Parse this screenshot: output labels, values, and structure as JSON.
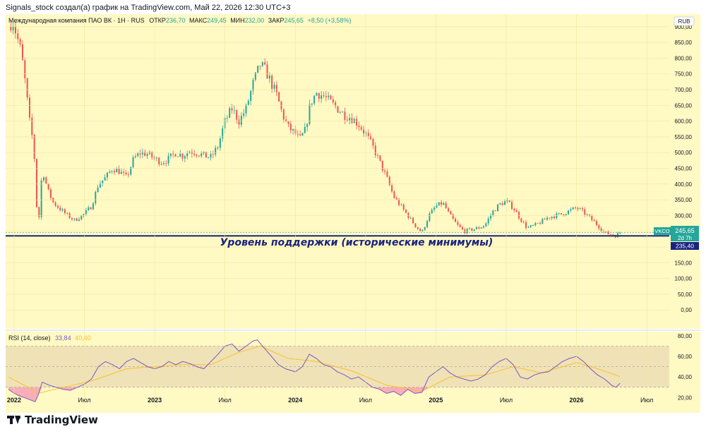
{
  "header": {
    "text": "Signals_stock создал(а) график на TradingView.com, Май 22, 2026 12:30 UTC+3"
  },
  "legend": {
    "symbol_line": "Международная компания ПАО ВК · 1Н · RUS",
    "open_label": "ОТКР",
    "open_value": "236,70",
    "high_label": "МАКС",
    "high_value": "249,45",
    "low_label": "МИН",
    "low_value": "232,00",
    "close_label": "ЗАКР",
    "close_value": "245,65",
    "change": "+8,50 (+3,58%)"
  },
  "currency": "RUB",
  "price_tag": {
    "ticker": "VKCO",
    "value": "245,65",
    "countdown": "2d 7h",
    "support_value": "235,40"
  },
  "annotation": "Уровень поддержки (исторические минимумы)",
  "rsi_legend": {
    "label": "RSI (14, close)",
    "value1": "33,84",
    "value2": "40,40"
  },
  "footer": {
    "brand": "TradingView"
  },
  "colors": {
    "background": "#fff9c4",
    "up": "#26a69a",
    "down": "#ef5350",
    "support": "#1a237e",
    "rsi_line": "#7e57c2",
    "rsi_ma": "#fbc02d"
  },
  "chart_data": [
    {
      "type": "candlestick",
      "ylim": [
        -60,
        940
      ],
      "y_ticks": [
        0,
        50,
        100,
        150,
        200,
        250,
        300,
        350,
        400,
        450,
        500,
        550,
        600,
        650,
        700,
        750,
        800,
        850,
        900
      ],
      "y_tick_labels": [
        "0,00",
        "50,00",
        "100,00",
        "150,00",
        "200,00",
        "250,00",
        "300,00",
        "350,00",
        "400,00",
        "450,00",
        "500,00",
        "550,00",
        "600,00",
        "650,00",
        "700,00",
        "750,00",
        "800,00",
        "850,00",
        "900,00"
      ],
      "x_ticks": [
        2022.0,
        2022.5,
        2023.0,
        2023.5,
        2024.0,
        2024.5,
        2025.0,
        2025.5,
        2026.0,
        2026.5
      ],
      "x_tick_labels": [
        "2022",
        "Июл",
        "2023",
        "Июл",
        "2024",
        "Июл",
        "2025",
        "Июл",
        "2026",
        "Июл"
      ],
      "xlim": [
        2021.94,
        2026.66
      ],
      "price_path": [
        [
          2021.96,
          900
        ],
        [
          2021.99,
          920
        ],
        [
          2022.02,
          870
        ],
        [
          2022.05,
          820
        ],
        [
          2022.08,
          720
        ],
        [
          2022.11,
          600
        ],
        [
          2022.14,
          520
        ],
        [
          2022.17,
          245
        ],
        [
          2022.2,
          450
        ],
        [
          2022.24,
          380
        ],
        [
          2022.28,
          340
        ],
        [
          2022.33,
          320
        ],
        [
          2022.38,
          300
        ],
        [
          2022.43,
          285
        ],
        [
          2022.5,
          305
        ],
        [
          2022.55,
          330
        ],
        [
          2022.6,
          400
        ],
        [
          2022.65,
          420
        ],
        [
          2022.7,
          450
        ],
        [
          2022.75,
          440
        ],
        [
          2022.8,
          420
        ],
        [
          2022.85,
          480
        ],
        [
          2022.9,
          500
        ],
        [
          2022.95,
          495
        ],
        [
          2023.0,
          480
        ],
        [
          2023.05,
          470
        ],
        [
          2023.1,
          480
        ],
        [
          2023.15,
          500
        ],
        [
          2023.2,
          490
        ],
        [
          2023.25,
          505
        ],
        [
          2023.3,
          500
        ],
        [
          2023.35,
          490
        ],
        [
          2023.4,
          485
        ],
        [
          2023.45,
          520
        ],
        [
          2023.5,
          600
        ],
        [
          2023.55,
          640
        ],
        [
          2023.6,
          600
        ],
        [
          2023.65,
          640
        ],
        [
          2023.7,
          720
        ],
        [
          2023.75,
          780
        ],
        [
          2023.79,
          760
        ],
        [
          2023.83,
          720
        ],
        [
          2023.87,
          680
        ],
        [
          2023.91,
          620
        ],
        [
          2023.95,
          580
        ],
        [
          2024.0,
          560
        ],
        [
          2024.03,
          540
        ],
        [
          2024.07,
          570
        ],
        [
          2024.11,
          660
        ],
        [
          2024.15,
          690
        ],
        [
          2024.2,
          680
        ],
        [
          2024.25,
          660
        ],
        [
          2024.3,
          640
        ],
        [
          2024.35,
          620
        ],
        [
          2024.4,
          610
        ],
        [
          2024.45,
          590
        ],
        [
          2024.5,
          560
        ],
        [
          2024.55,
          520
        ],
        [
          2024.6,
          470
        ],
        [
          2024.65,
          420
        ],
        [
          2024.7,
          360
        ],
        [
          2024.75,
          330
        ],
        [
          2024.8,
          300
        ],
        [
          2024.85,
          270
        ],
        [
          2024.9,
          245
        ],
        [
          2024.95,
          300
        ],
        [
          2025.0,
          330
        ],
        [
          2025.05,
          340
        ],
        [
          2025.1,
          300
        ],
        [
          2025.15,
          270
        ],
        [
          2025.2,
          250
        ],
        [
          2025.25,
          255
        ],
        [
          2025.3,
          260
        ],
        [
          2025.35,
          270
        ],
        [
          2025.4,
          310
        ],
        [
          2025.45,
          335
        ],
        [
          2025.5,
          345
        ],
        [
          2025.55,
          325
        ],
        [
          2025.6,
          290
        ],
        [
          2025.65,
          260
        ],
        [
          2025.7,
          268
        ],
        [
          2025.75,
          280
        ],
        [
          2025.8,
          295
        ],
        [
          2025.85,
          300
        ],
        [
          2025.9,
          305
        ],
        [
          2025.95,
          315
        ],
        [
          2026.0,
          325
        ],
        [
          2026.05,
          310
        ],
        [
          2026.1,
          290
        ],
        [
          2026.15,
          270
        ],
        [
          2026.2,
          245
        ],
        [
          2026.25,
          240
        ],
        [
          2026.28,
          236
        ],
        [
          2026.31,
          245.65
        ]
      ],
      "support_level": 235.4
    },
    {
      "type": "line",
      "title": "RSI (14, close)",
      "ylim": [
        12,
        84
      ],
      "y_ticks": [
        20,
        40,
        60,
        80
      ],
      "y_tick_labels": [
        "20,00",
        "40,00",
        "60,00",
        "80,00"
      ],
      "bands": {
        "upper": 70,
        "middle": 50,
        "lower": 30
      },
      "series": [
        {
          "values": [
            [
              2021.96,
              28
            ],
            [
              2021.99,
              25
            ],
            [
              2022.03,
              22
            ],
            [
              2022.07,
              20
            ],
            [
              2022.11,
              18
            ],
            [
              2022.15,
              16
            ],
            [
              2022.17,
              22
            ],
            [
              2022.2,
              35
            ],
            [
              2022.25,
              32
            ],
            [
              2022.3,
              30
            ],
            [
              2022.35,
              28
            ],
            [
              2022.4,
              27
            ],
            [
              2022.45,
              30
            ],
            [
              2022.5,
              33
            ],
            [
              2022.55,
              38
            ],
            [
              2022.6,
              50
            ],
            [
              2022.65,
              55
            ],
            [
              2022.7,
              52
            ],
            [
              2022.75,
              48
            ],
            [
              2022.8,
              55
            ],
            [
              2022.85,
              58
            ],
            [
              2022.9,
              54
            ],
            [
              2022.95,
              50
            ],
            [
              2023.0,
              48
            ],
            [
              2023.05,
              50
            ],
            [
              2023.1,
              55
            ],
            [
              2023.15,
              52
            ],
            [
              2023.2,
              55
            ],
            [
              2023.25,
              53
            ],
            [
              2023.3,
              50
            ],
            [
              2023.35,
              48
            ],
            [
              2023.4,
              55
            ],
            [
              2023.45,
              62
            ],
            [
              2023.5,
              70
            ],
            [
              2023.55,
              72
            ],
            [
              2023.6,
              65
            ],
            [
              2023.65,
              70
            ],
            [
              2023.7,
              75
            ],
            [
              2023.73,
              76
            ],
            [
              2023.78,
              68
            ],
            [
              2023.83,
              60
            ],
            [
              2023.88,
              52
            ],
            [
              2023.93,
              48
            ],
            [
              2024.0,
              45
            ],
            [
              2024.05,
              50
            ],
            [
              2024.1,
              62
            ],
            [
              2024.15,
              58
            ],
            [
              2024.2,
              52
            ],
            [
              2024.25,
              50
            ],
            [
              2024.3,
              45
            ],
            [
              2024.35,
              42
            ],
            [
              2024.4,
              38
            ],
            [
              2024.45,
              40
            ],
            [
              2024.5,
              35
            ],
            [
              2024.55,
              30
            ],
            [
              2024.6,
              28
            ],
            [
              2024.65,
              24
            ],
            [
              2024.7,
              26
            ],
            [
              2024.75,
              22
            ],
            [
              2024.8,
              28
            ],
            [
              2024.85,
              24
            ],
            [
              2024.9,
              25
            ],
            [
              2024.95,
              40
            ],
            [
              2025.0,
              45
            ],
            [
              2025.05,
              50
            ],
            [
              2025.1,
              44
            ],
            [
              2025.15,
              40
            ],
            [
              2025.2,
              38
            ],
            [
              2025.25,
              36
            ],
            [
              2025.3,
              38
            ],
            [
              2025.35,
              42
            ],
            [
              2025.4,
              50
            ],
            [
              2025.45,
              55
            ],
            [
              2025.5,
              58
            ],
            [
              2025.55,
              52
            ],
            [
              2025.6,
              40
            ],
            [
              2025.65,
              38
            ],
            [
              2025.7,
              42
            ],
            [
              2025.75,
              44
            ],
            [
              2025.8,
              45
            ],
            [
              2025.85,
              50
            ],
            [
              2025.9,
              55
            ],
            [
              2025.95,
              58
            ],
            [
              2026.0,
              60
            ],
            [
              2026.05,
              55
            ],
            [
              2026.1,
              48
            ],
            [
              2026.15,
              42
            ],
            [
              2026.2,
              38
            ],
            [
              2026.25,
              32
            ],
            [
              2026.28,
              30
            ],
            [
              2026.31,
              33.84
            ]
          ]
        },
        {
          "values": [
            [
              2021.96,
              40
            ],
            [
              2022.1,
              30
            ],
            [
              2022.17,
              24
            ],
            [
              2022.35,
              30
            ],
            [
              2022.55,
              36
            ],
            [
              2022.8,
              48
            ],
            [
              2023.0,
              50
            ],
            [
              2023.2,
              52
            ],
            [
              2023.4,
              52
            ],
            [
              2023.6,
              64
            ],
            [
              2023.75,
              70
            ],
            [
              2023.95,
              58
            ],
            [
              2024.15,
              55
            ],
            [
              2024.4,
              46
            ],
            [
              2024.65,
              32
            ],
            [
              2024.9,
              26
            ],
            [
              2025.1,
              40
            ],
            [
              2025.35,
              42
            ],
            [
              2025.55,
              50
            ],
            [
              2025.75,
              44
            ],
            [
              2026.0,
              54
            ],
            [
              2026.15,
              48
            ],
            [
              2026.31,
              40.4
            ]
          ]
        }
      ]
    }
  ]
}
